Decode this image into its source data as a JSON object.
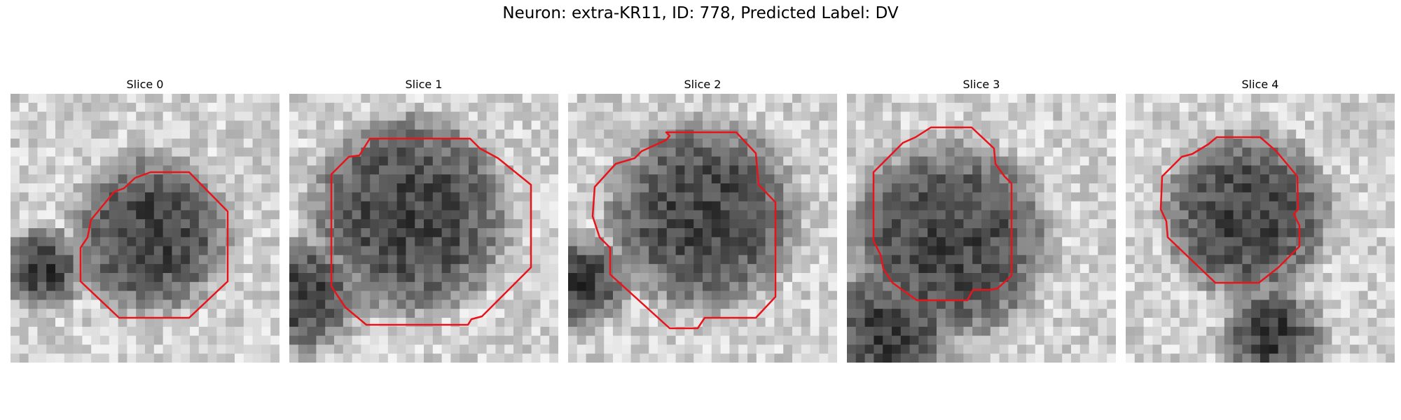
{
  "figure": {
    "title": "Neuron: extra-KR11, ID: 778, Predicted Label: DV"
  },
  "panels": [
    {
      "title": "Slice 0",
      "contour_color": "#e8141b"
    },
    {
      "title": "Slice 1",
      "contour_color": "#e8141b"
    },
    {
      "title": "Slice 2",
      "contour_color": "#e8141b"
    },
    {
      "title": "Slice 3",
      "contour_color": "#e8141b"
    },
    {
      "title": "Slice 4",
      "contour_color": "#e8141b"
    }
  ]
}
